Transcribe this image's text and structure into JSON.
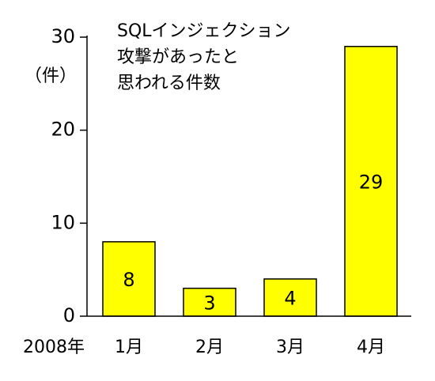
{
  "chart_data": {
    "type": "bar",
    "title_lines": [
      "SQLインジェクション",
      "攻撃があったと",
      "思われる件数"
    ],
    "y_label": "（件）",
    "x_label": "2008年",
    "categories": [
      "1月",
      "2月",
      "3月",
      "4月"
    ],
    "values": [
      8,
      3,
      4,
      29
    ],
    "color": "#ffff00",
    "ylim": [
      0,
      30
    ],
    "yticks": [
      0,
      10,
      20,
      30
    ],
    "grid": false
  }
}
